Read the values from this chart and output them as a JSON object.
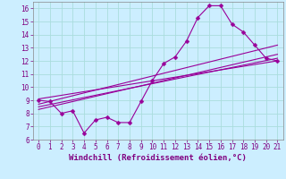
{
  "title": "",
  "xlabel": "Windchill (Refroidissement éolien,°C)",
  "ylabel": "",
  "bg_color": "#cceeff",
  "line_color": "#990099",
  "grid_color": "#aadddd",
  "xlim": [
    -0.5,
    21.5
  ],
  "ylim": [
    6,
    16.5
  ],
  "yticks": [
    6,
    7,
    8,
    9,
    10,
    11,
    12,
    13,
    14,
    15,
    16
  ],
  "xticks": [
    0,
    1,
    2,
    3,
    4,
    5,
    6,
    7,
    8,
    9,
    10,
    11,
    12,
    13,
    14,
    15,
    16,
    17,
    18,
    19,
    20,
    21
  ],
  "main_x": [
    0,
    1,
    2,
    3,
    4,
    5,
    6,
    7,
    8,
    9,
    10,
    11,
    12,
    13,
    14,
    15,
    16,
    17,
    18,
    19,
    20,
    21
  ],
  "main_y": [
    9.0,
    8.9,
    8.0,
    8.2,
    6.5,
    7.5,
    7.7,
    7.3,
    7.3,
    8.9,
    10.5,
    11.8,
    12.3,
    13.5,
    15.3,
    16.2,
    16.2,
    14.8,
    14.2,
    13.2,
    12.2,
    12.0
  ],
  "line2_x": [
    0,
    21
  ],
  "line2_y": [
    8.5,
    12.2
  ],
  "line3_x": [
    0,
    21
  ],
  "line3_y": [
    8.3,
    12.5
  ],
  "line4_x": [
    0,
    21
  ],
  "line4_y": [
    8.7,
    13.2
  ],
  "line5_x": [
    0,
    21
  ],
  "line5_y": [
    9.1,
    12.0
  ],
  "marker": "D",
  "markersize": 2.5,
  "linewidth": 0.8,
  "font_color": "#800080",
  "tick_fontsize": 5.5,
  "xlabel_fontsize": 6.5
}
